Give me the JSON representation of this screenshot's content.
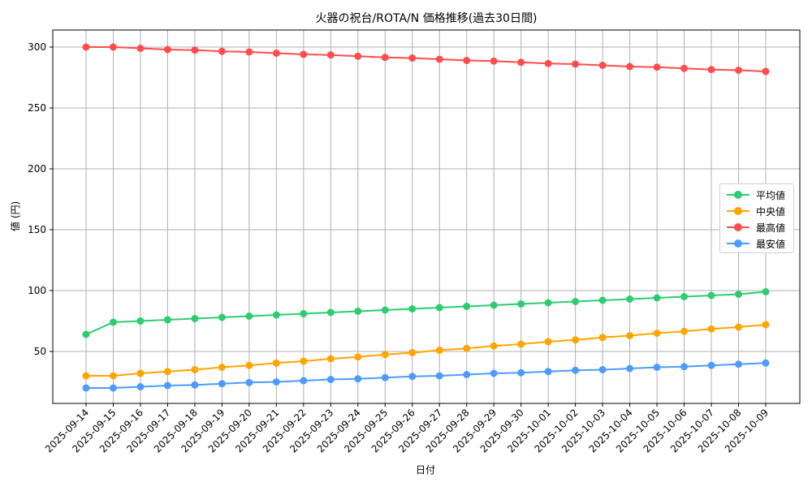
{
  "chart_data": {
    "type": "line",
    "title": "火器の祝台/ROTA/N 価格推移(過去30日間)",
    "xlabel": "日付",
    "ylabel": "値 (円)",
    "ylim": [
      7,
      314
    ],
    "yticks": [
      50,
      100,
      150,
      200,
      250,
      300
    ],
    "grid": true,
    "legend_position": "center right",
    "x": [
      "2025-09-14",
      "2025-09-15",
      "2025-09-16",
      "2025-09-17",
      "2025-09-18",
      "2025-09-19",
      "2025-09-20",
      "2025-09-21",
      "2025-09-22",
      "2025-09-23",
      "2025-09-24",
      "2025-09-25",
      "2025-09-26",
      "2025-09-27",
      "2025-09-28",
      "2025-09-29",
      "2025-09-30",
      "2025-10-01",
      "2025-10-02",
      "2025-10-03",
      "2025-10-04",
      "2025-10-05",
      "2025-10-06",
      "2025-10-07",
      "2025-10-08",
      "2025-10-09"
    ],
    "series": [
      {
        "name": "平均値",
        "color": "#2ecc71",
        "values": [
          64,
          74,
          75,
          76,
          77,
          78,
          79,
          80,
          81,
          82,
          83,
          84,
          85,
          86,
          87,
          88,
          89,
          90,
          91,
          92,
          93,
          94,
          95,
          96,
          97,
          99
        ]
      },
      {
        "name": "中央値",
        "color": "#ffa500",
        "values": [
          30,
          30,
          32,
          33.5,
          35,
          37,
          38.5,
          40.5,
          42,
          44,
          45.5,
          47.5,
          49,
          51,
          52.5,
          54.5,
          56,
          58,
          59.5,
          61.5,
          63,
          65,
          66.5,
          68.5,
          70,
          72
        ]
      },
      {
        "name": "最高値",
        "color": "#ff4d4d",
        "values": [
          300,
          300,
          299,
          298,
          297.5,
          296.5,
          296,
          295,
          294,
          293.5,
          292.5,
          291.5,
          291,
          290,
          289,
          288.5,
          287.5,
          286.5,
          286,
          285,
          284,
          283.5,
          282.5,
          281.5,
          281,
          280
        ]
      },
      {
        "name": "最安値",
        "color": "#4d9bff",
        "values": [
          20,
          20,
          21,
          22,
          22.5,
          23.5,
          24.5,
          25,
          26,
          27,
          27.5,
          28.5,
          29.5,
          30,
          31,
          32,
          32.5,
          33.5,
          34.5,
          35,
          36,
          37,
          37.5,
          38.5,
          39.5,
          40.5
        ]
      }
    ]
  }
}
